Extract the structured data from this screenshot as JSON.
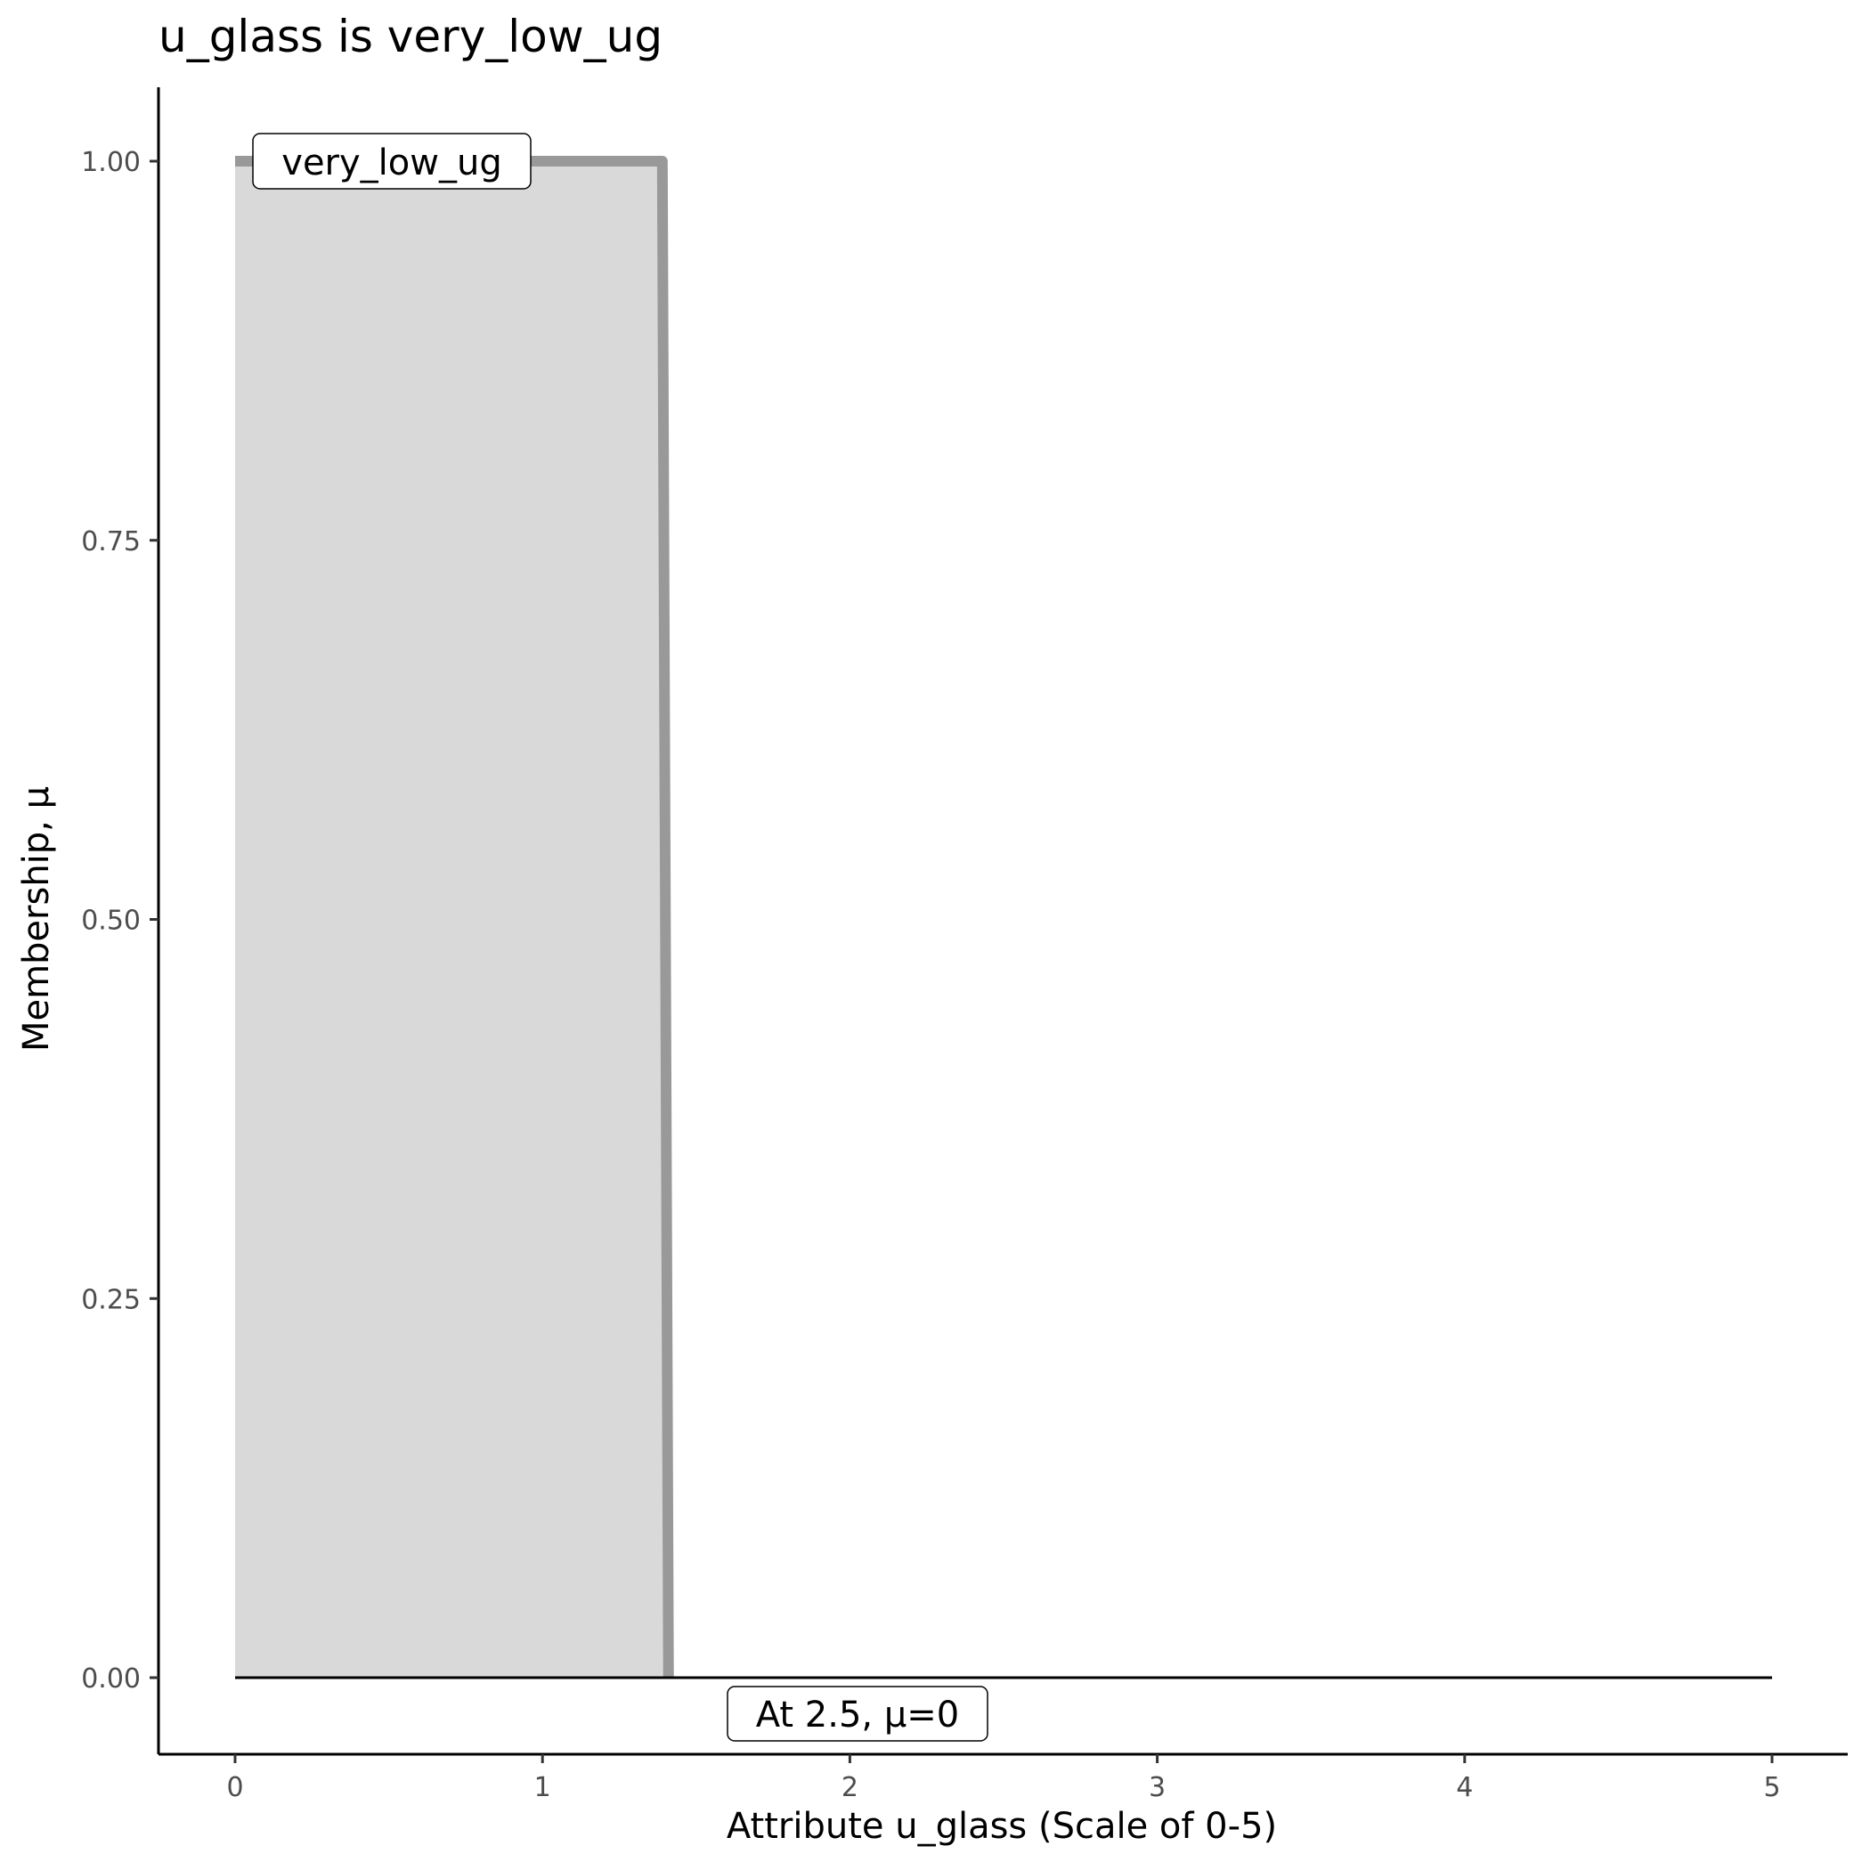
{
  "chart_data": {
    "type": "area",
    "title": "u_glass is very_low_ug",
    "xlabel": "Attribute u_glass (Scale of 0-5)",
    "ylabel": "Membership, μ",
    "xlim": [
      -0.25,
      5.25
    ],
    "ylim": [
      -0.05,
      1.05
    ],
    "x_ticks": [
      0,
      1,
      2,
      3,
      4,
      5
    ],
    "x_tick_labels": [
      "0",
      "1",
      "2",
      "3",
      "4",
      "5"
    ],
    "y_ticks": [
      0,
      0.25,
      0.5,
      0.75,
      1
    ],
    "y_tick_labels": [
      "0.00",
      "0.25",
      "0.50",
      "0.75",
      "1.00"
    ],
    "grid": false,
    "series": [
      {
        "name": "very_low_ug",
        "x": [
          0,
          1.39,
          1.41
        ],
        "y": [
          1,
          1,
          0
        ],
        "fill": "#d9d9d9",
        "stroke": "#999999"
      }
    ],
    "baseline": {
      "x": [
        0,
        5
      ],
      "y": [
        0,
        0
      ],
      "color": "#000000"
    },
    "annotations": [
      {
        "text": "very_low_ug",
        "x": 0.5,
        "y": 1
      },
      {
        "text": "At 2.5, μ=0",
        "x": 2.02,
        "y": -0.025
      }
    ]
  }
}
